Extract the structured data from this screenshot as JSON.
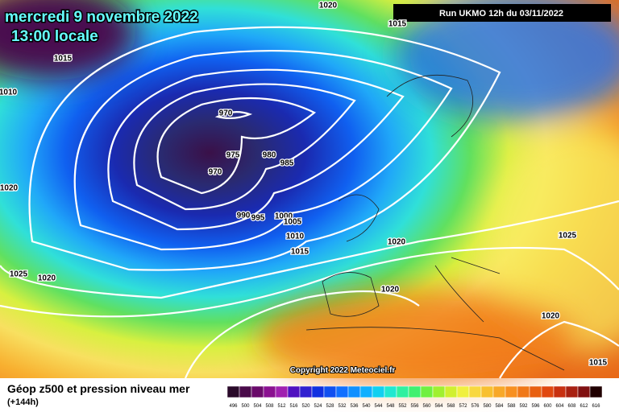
{
  "header": {
    "date": "mercredi 9 novembre 2022",
    "time": "13:00 locale",
    "run": "Run UKMO 12h du 03/11/2022"
  },
  "isobar_labels": [
    "1020",
    "1015",
    "1015",
    "1010",
    "970",
    "975",
    "980",
    "985",
    "970",
    "1020",
    "990",
    "995",
    "1000",
    "1005",
    "1010",
    "1015",
    "1020",
    "1025",
    "1025",
    "1020",
    "1020",
    "1020",
    "1015"
  ],
  "copyright": "Copyright 2022 Meteociel.fr",
  "legend": {
    "title": "Géop z500 et pression niveau mer",
    "subtitle": "(+144h)",
    "scale": [
      "496",
      "500",
      "504",
      "508",
      "512",
      "516",
      "520",
      "524",
      "528",
      "532",
      "536",
      "540",
      "544",
      "548",
      "552",
      "556",
      "560",
      "564",
      "568",
      "572",
      "576",
      "580",
      "584",
      "588",
      "592",
      "596",
      "600",
      "604",
      "608",
      "612",
      "616"
    ]
  }
}
